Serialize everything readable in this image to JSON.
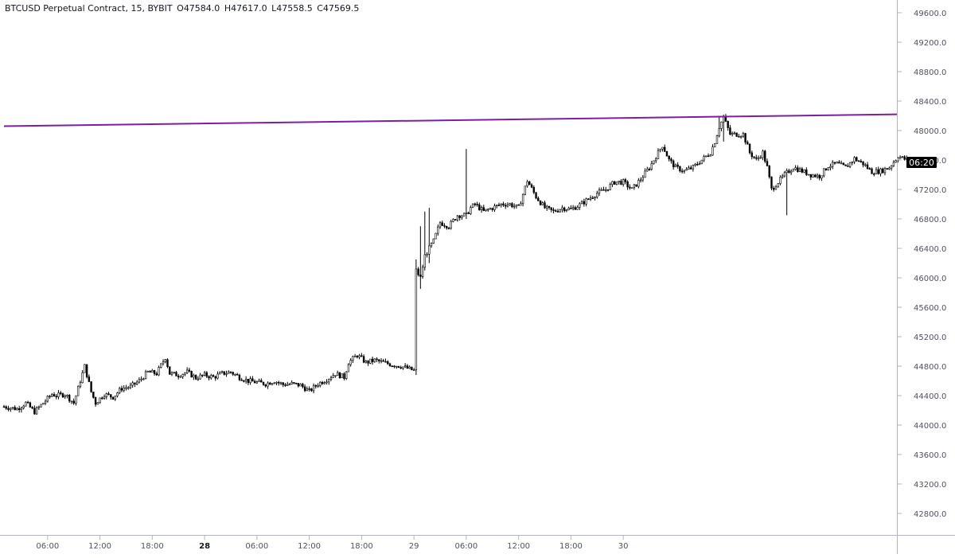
{
  "legend": {
    "symbol": "BTCUSD Perpetual Contract, 15, BYBIT",
    "open_key": "O",
    "open": "47584.0",
    "high_key": "H",
    "high": "47617.0",
    "low_key": "L",
    "low": "47558.5",
    "close_key": "C",
    "close": "47569.5"
  },
  "countdown": "06:20",
  "colors": {
    "candle": "#000000",
    "trendline": "#7b1fa2",
    "axis": "#b2b5be",
    "tick_text": "#50535e",
    "label_bg": "#000000",
    "label_text": "#ffffff"
  },
  "chart_data": {
    "type": "candlestick",
    "interval_minutes": 15,
    "x_start": "27 01:00",
    "y_ticks": [
      42800,
      43200,
      43600,
      44000,
      44400,
      44800,
      45200,
      45600,
      46000,
      46400,
      46800,
      47200,
      47600,
      48000,
      48400,
      48800,
      49200,
      49600
    ],
    "y_tick_labels": [
      "42800.0",
      "43200.0",
      "43600.0",
      "44000.0",
      "44400.0",
      "44800.0",
      "45200.0",
      "45600.0",
      "46000.0",
      "46400.0",
      "46800.0",
      "47200.0",
      "47600.0",
      "48000.0",
      "48400.0",
      "48800.0",
      "49200.0",
      "49600.0"
    ],
    "ylim": [
      42500,
      49800
    ],
    "x_ticks": [
      {
        "label": "06:00",
        "bold": false
      },
      {
        "label": "12:00",
        "bold": false
      },
      {
        "label": "18:00",
        "bold": false
      },
      {
        "label": "28",
        "bold": true
      },
      {
        "label": "06:00",
        "bold": false
      },
      {
        "label": "12:00",
        "bold": false
      },
      {
        "label": "18:00",
        "bold": false
      },
      {
        "label": "29",
        "bold": false
      },
      {
        "label": "06:00",
        "bold": false
      },
      {
        "label": "12:00",
        "bold": false
      },
      {
        "label": "18:00",
        "bold": false
      },
      {
        "label": "30",
        "bold": false
      }
    ],
    "trendline": {
      "from": [
        "27 01:00",
        48060
      ],
      "to": [
        "29 21:15",
        48220
      ]
    },
    "price_path": [
      [
        0,
        44250
      ],
      [
        6,
        44220
      ],
      [
        10,
        44300
      ],
      [
        14,
        44180
      ],
      [
        18,
        44300
      ],
      [
        22,
        44420
      ],
      [
        24,
        44400
      ],
      [
        28,
        44420
      ],
      [
        32,
        44300
      ],
      [
        34,
        44500
      ],
      [
        37,
        44800
      ],
      [
        40,
        44450
      ],
      [
        42,
        44300
      ],
      [
        46,
        44420
      ],
      [
        50,
        44380
      ],
      [
        54,
        44500
      ],
      [
        58,
        44520
      ],
      [
        62,
        44600
      ],
      [
        66,
        44720
      ],
      [
        70,
        44700
      ],
      [
        74,
        44920
      ],
      [
        76,
        44700
      ],
      [
        80,
        44680
      ],
      [
        84,
        44720
      ],
      [
        88,
        44640
      ],
      [
        92,
        44680
      ],
      [
        96,
        44650
      ],
      [
        100,
        44700
      ],
      [
        104,
        44720
      ],
      [
        108,
        44650
      ],
      [
        112,
        44600
      ],
      [
        116,
        44580
      ],
      [
        120,
        44560
      ],
      [
        124,
        44600
      ],
      [
        128,
        44550
      ],
      [
        132,
        44560
      ],
      [
        136,
        44540
      ],
      [
        140,
        44460
      ],
      [
        144,
        44560
      ],
      [
        148,
        44620
      ],
      [
        152,
        44700
      ],
      [
        156,
        44650
      ],
      [
        158,
        44850
      ],
      [
        162,
        44950
      ],
      [
        166,
        44850
      ],
      [
        170,
        44880
      ],
      [
        174,
        44850
      ],
      [
        178,
        44820
      ],
      [
        182,
        44800
      ],
      [
        186,
        44760
      ],
      [
        188,
        44740
      ],
      [
        189,
        46100
      ],
      [
        191,
        46000
      ],
      [
        193,
        46300
      ],
      [
        197,
        46500
      ],
      [
        200,
        46750
      ],
      [
        204,
        46700
      ],
      [
        208,
        46850
      ],
      [
        212,
        46850
      ],
      [
        214,
        46950
      ],
      [
        216,
        47000
      ],
      [
        220,
        46900
      ],
      [
        224,
        46950
      ],
      [
        228,
        47000
      ],
      [
        232,
        47000
      ],
      [
        236,
        46950
      ],
      [
        240,
        47320
      ],
      [
        244,
        47100
      ],
      [
        248,
        46950
      ],
      [
        252,
        46900
      ],
      [
        256,
        46950
      ],
      [
        260,
        46930
      ],
      [
        264,
        46990
      ],
      [
        268,
        47070
      ],
      [
        272,
        47150
      ],
      [
        276,
        47200
      ],
      [
        280,
        47300
      ],
      [
        284,
        47300
      ],
      [
        288,
        47200
      ],
      [
        292,
        47340
      ],
      [
        296,
        47500
      ],
      [
        300,
        47700
      ],
      [
        302,
        47800
      ],
      [
        305,
        47600
      ],
      [
        308,
        47500
      ],
      [
        312,
        47450
      ],
      [
        316,
        47500
      ],
      [
        320,
        47600
      ],
      [
        324,
        47700
      ],
      [
        326,
        47850
      ],
      [
        328,
        48050
      ],
      [
        330,
        48180
      ],
      [
        333,
        47950
      ],
      [
        336,
        47950
      ],
      [
        339,
        47950
      ],
      [
        342,
        47700
      ],
      [
        345,
        47600
      ],
      [
        348,
        47700
      ],
      [
        350,
        47500
      ],
      [
        352,
        47200
      ],
      [
        355,
        47300
      ],
      [
        358,
        47400
      ],
      [
        362,
        47500
      ],
      [
        366,
        47450
      ],
      [
        370,
        47400
      ],
      [
        374,
        47380
      ],
      [
        378,
        47520
      ],
      [
        382,
        47550
      ],
      [
        386,
        47500
      ],
      [
        390,
        47620
      ],
      [
        394,
        47550
      ],
      [
        398,
        47440
      ],
      [
        402,
        47450
      ],
      [
        406,
        47500
      ],
      [
        410,
        47650
      ],
      [
        414,
        47600
      ],
      [
        416,
        47570
      ]
    ]
  }
}
